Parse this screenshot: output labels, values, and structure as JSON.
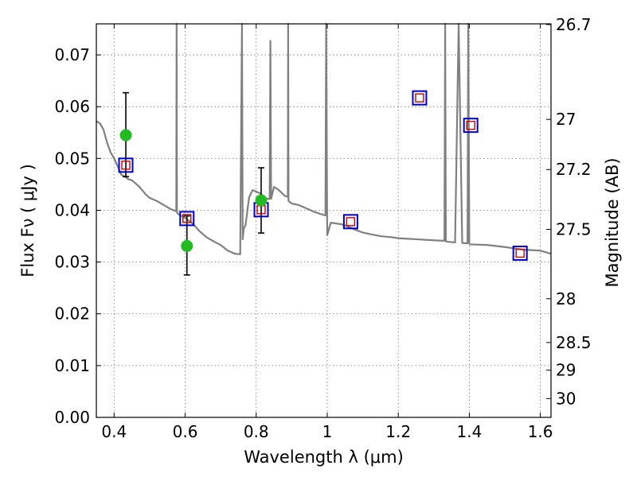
{
  "chart_data": {
    "type": "scatter",
    "xlabel": "Wavelength  λ (μm)",
    "ylabel": "Flux  Fν  ( μJy )",
    "ylabel_right": "Magnitude (AB)",
    "xlim": [
      0.35,
      1.63
    ],
    "ylim": [
      0.0,
      0.076
    ],
    "x_ticks": [
      0.4,
      0.6,
      0.8,
      1.0,
      1.2,
      1.4,
      1.6
    ],
    "x_tick_labels": [
      "0.4",
      "0.6",
      "0.8",
      "1",
      "1.2",
      "1.4",
      "1.6"
    ],
    "y_ticks": [
      0.0,
      0.01,
      0.02,
      0.03,
      0.04,
      0.05,
      0.06,
      0.07
    ],
    "y_tick_labels": [
      "0.00",
      "0.01",
      "0.02",
      "0.03",
      "0.04",
      "0.05",
      "0.06",
      "0.07"
    ],
    "right_axis_ticks": [
      26.7,
      27.0,
      27.2,
      27.5,
      28.0,
      28.5,
      29.0,
      30.0
    ],
    "right_axis_tick_labels": [
      "26.7",
      "27",
      "27.2",
      "27.5",
      "28",
      "28.5",
      "29",
      "30"
    ],
    "grid": true,
    "colors": {
      "model_spectrum": "#808080",
      "observed": "#22bb22",
      "model_photometry_outer": "#0000cc",
      "model_photometry_inner": "#cc0000",
      "error_bars": "#000000"
    },
    "series": [
      {
        "kind": "line",
        "x": [
          0.35,
          0.36,
          0.37,
          0.38,
          0.39,
          0.4,
          0.41,
          0.42,
          0.43,
          0.44,
          0.45,
          0.46,
          0.47,
          0.48,
          0.49,
          0.5,
          0.52,
          0.54,
          0.56,
          0.575,
          0.576,
          0.577,
          0.58,
          0.6,
          0.62,
          0.64,
          0.66,
          0.68,
          0.7,
          0.72,
          0.74,
          0.755,
          0.76,
          0.762,
          0.765,
          0.77,
          0.78,
          0.79,
          0.8,
          0.81,
          0.82,
          0.83,
          0.838,
          0.84,
          0.842,
          0.85,
          0.86,
          0.87,
          0.88,
          0.889,
          0.89,
          0.891,
          0.9,
          0.92,
          0.94,
          0.96,
          0.98,
          0.995,
          0.997,
          1.0,
          1.01,
          1.02,
          1.04,
          1.06,
          1.08,
          1.1,
          1.12,
          1.15,
          1.18,
          1.2,
          1.25,
          1.3,
          1.33,
          1.332,
          1.334,
          1.34,
          1.36,
          1.37,
          1.38,
          1.395,
          1.397,
          1.4,
          1.402,
          1.45,
          1.5,
          1.55,
          1.6,
          1.63
        ],
        "y": [
          0.0572,
          0.0568,
          0.0556,
          0.0531,
          0.0512,
          0.05,
          0.0485,
          0.0469,
          0.0465,
          0.046,
          0.0458,
          0.0452,
          0.0446,
          0.0438,
          0.043,
          0.0424,
          0.0418,
          0.041,
          0.0402,
          0.0398,
          0.076,
          0.0396,
          0.0393,
          0.0385,
          0.0375,
          0.036,
          0.0348,
          0.034,
          0.0333,
          0.0322,
          0.0316,
          0.0315,
          0.076,
          0.0344,
          0.0365,
          0.0371,
          0.0425,
          0.0439,
          0.0436,
          0.0433,
          0.0427,
          0.0422,
          0.0422,
          0.0727,
          0.0422,
          0.0445,
          0.0441,
          0.0435,
          0.0428,
          0.0426,
          0.076,
          0.0418,
          0.0413,
          0.041,
          0.0404,
          0.0398,
          0.0393,
          0.039,
          0.076,
          0.0352,
          0.0376,
          0.0375,
          0.0373,
          0.0368,
          0.0362,
          0.0357,
          0.0354,
          0.035,
          0.0348,
          0.0346,
          0.0344,
          0.0342,
          0.0341,
          0.076,
          0.034,
          0.0339,
          0.0338,
          0.076,
          0.0337,
          0.0336,
          0.076,
          0.0336,
          0.0334,
          0.0333,
          0.0329,
          0.0324,
          0.0322,
          0.0316
        ]
      },
      {
        "kind": "errorbar",
        "x": [
          0.433,
          0.605,
          0.814
        ],
        "y": [
          0.0545,
          0.0331,
          0.0419
        ],
        "yerr_low": [
          0.0465,
          0.0275,
          0.0356
        ],
        "yerr_high": [
          0.0627,
          0.0389,
          0.0482
        ]
      },
      {
        "kind": "scatter",
        "marker": "square",
        "x": [
          0.433,
          0.605,
          0.814,
          1.066,
          1.26,
          1.404,
          1.543
        ],
        "y": [
          0.0487,
          0.0384,
          0.0401,
          0.0378,
          0.0617,
          0.0564,
          0.0317
        ]
      }
    ]
  }
}
